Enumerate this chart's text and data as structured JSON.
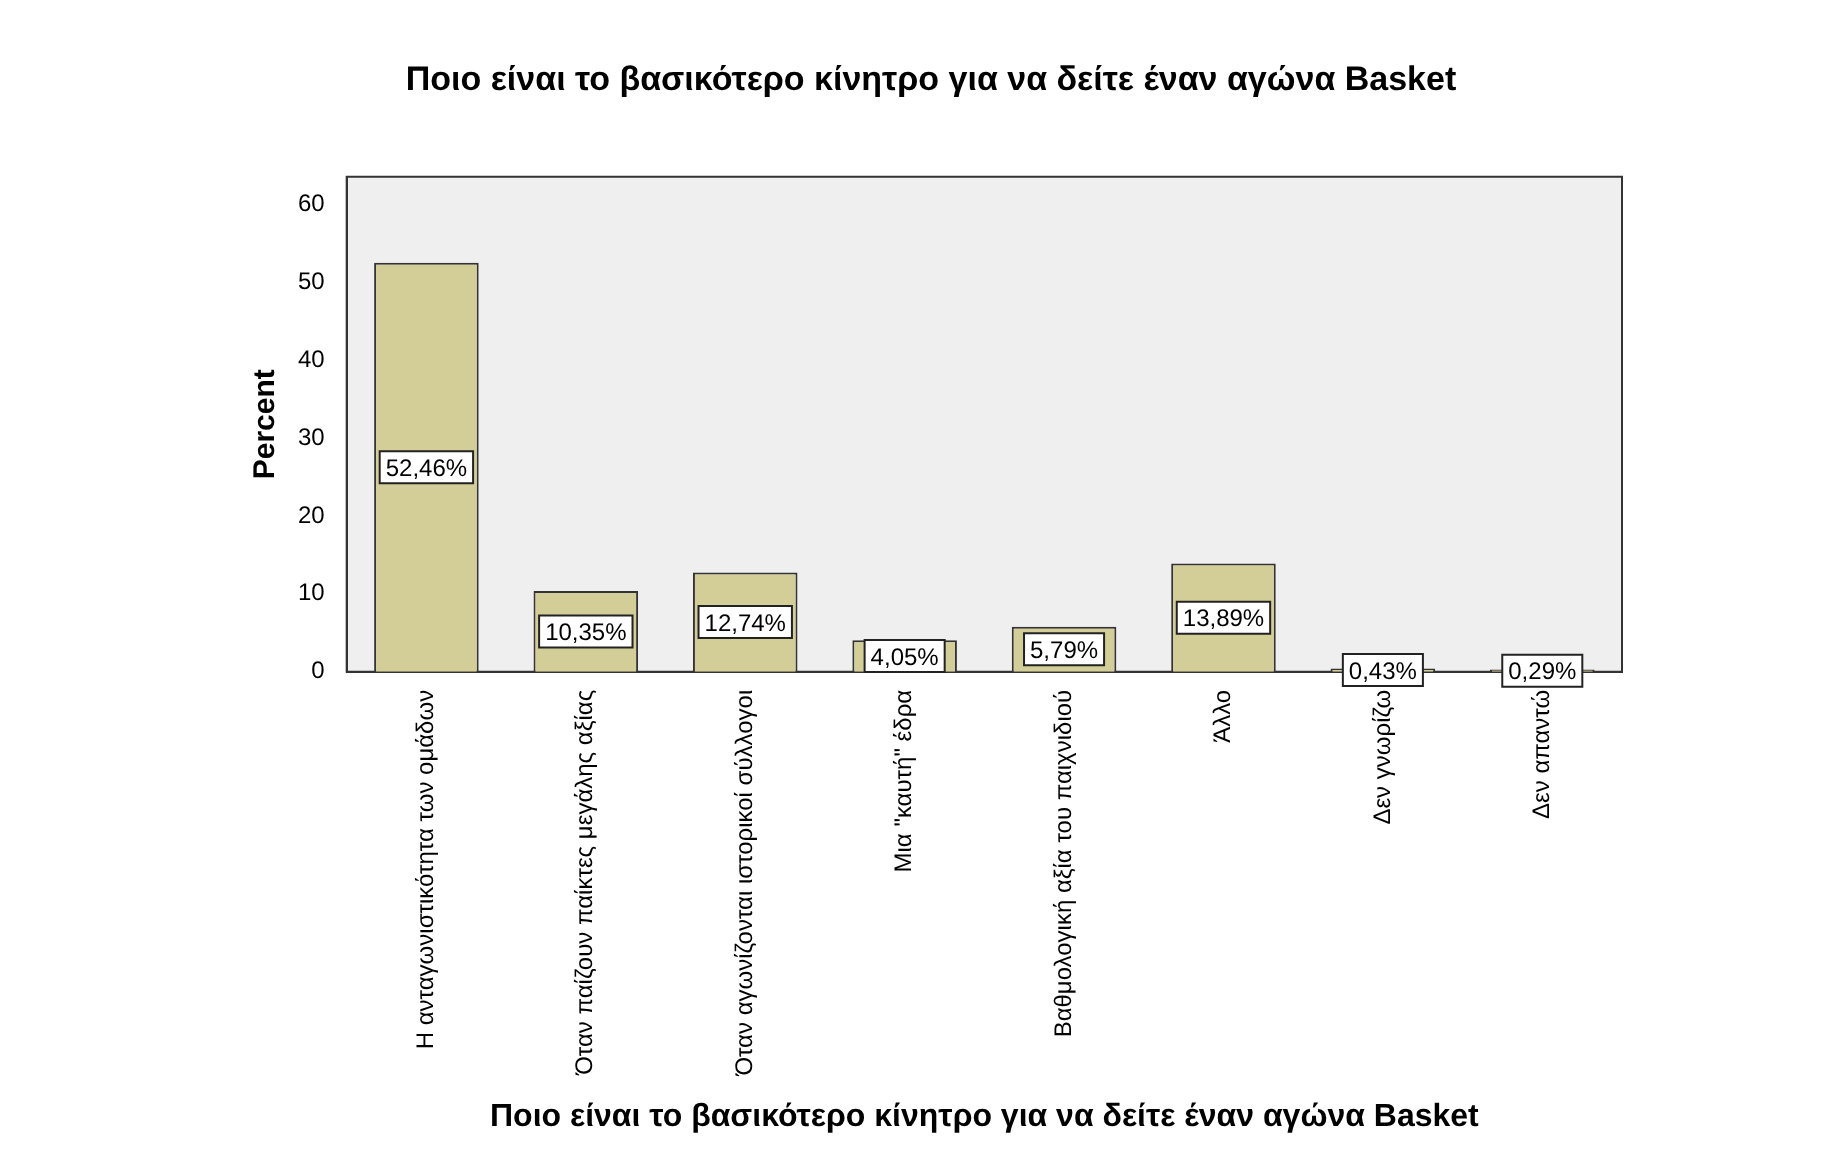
{
  "chart_data": {
    "type": "bar",
    "title": "Ποιο είναι το βασικότερο κίνητρο για να δείτε έναν αγώνα Basket",
    "xlabel": "Ποιο είναι το βασικότερο κίνητρο για να δείτε έναν αγώνα Basket",
    "ylabel": "Percent",
    "categories": [
      "Η ανταγωνιστικότητα των ομάδων",
      "Όταν παίζουν παίκτες μεγάλης αξίας",
      "Όταν αγωνίζονται ιστορικοί σύλλογοι",
      "Μια \"καυτή\" έδρα",
      "Βαθμολογική αξία του παιχνιδιού",
      "Άλλο",
      "Δεν γνωρίζω",
      "Δεν απαντώ"
    ],
    "values": [
      52.46,
      10.35,
      12.74,
      4.05,
      5.79,
      13.89,
      0.43,
      0.29
    ],
    "value_labels": [
      "52,46%",
      "10,35%",
      "12,74%",
      "4,05%",
      "5,79%",
      "13,89%",
      "0,43%",
      "0,29%"
    ],
    "color": "#d3ce98",
    "ylim": [
      0,
      63.5
    ],
    "yticks": [
      0,
      10,
      20,
      30,
      40,
      50,
      60
    ],
    "grid": false,
    "legend": false
  }
}
